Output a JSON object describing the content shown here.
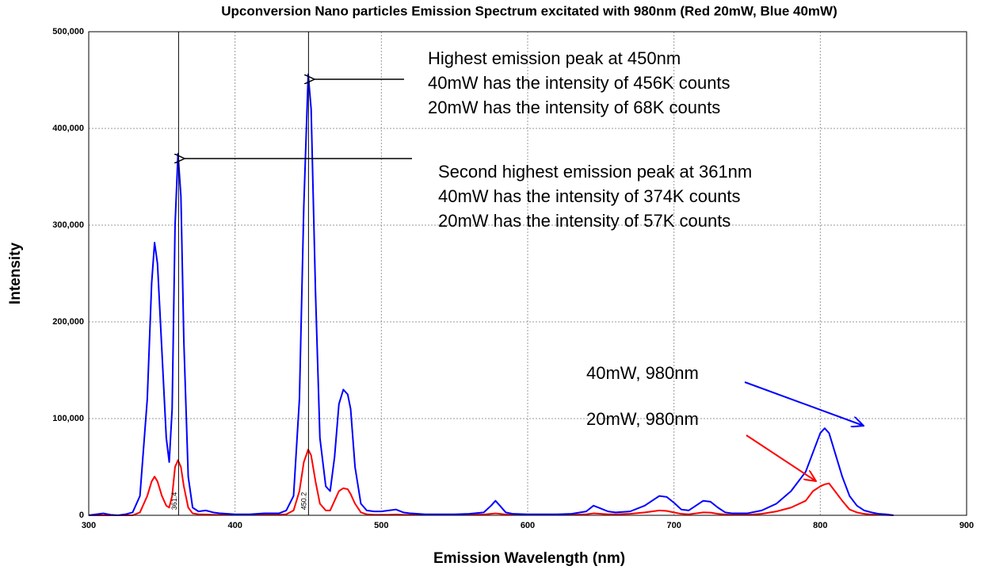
{
  "chart_data": {
    "type": "line",
    "title": "Upconversion Nano particles Emission Spectrum excitated with 980nm (Red 20mW, Blue 40mW)",
    "xlabel": "Emission Wavelength (nm)",
    "ylabel": "Intensity",
    "xlim": [
      300,
      900
    ],
    "ylim": [
      0,
      500000
    ],
    "xticks": [
      300,
      400,
      500,
      600,
      700,
      800,
      900
    ],
    "yticks": [
      {
        "value": 0,
        "label": "0"
      },
      {
        "value": 100000,
        "label": "100,000"
      },
      {
        "value": 200000,
        "label": "200,000"
      },
      {
        "value": 300000,
        "label": "300,000"
      },
      {
        "value": 400000,
        "label": "400,000"
      },
      {
        "value": 500000,
        "label": "500,000"
      }
    ],
    "grid": true,
    "markers": [
      {
        "value": 361.4,
        "label": "361.4"
      },
      {
        "value": 450.2,
        "label": "450.2"
      }
    ],
    "annotations": [
      [
        "Highest emission peak at 450nm",
        "40mW has the intensity of 456K counts",
        "20mW has the intensity of 68K counts"
      ],
      [
        "Second highest emission peak at 361nm",
        "40mW has the intensity of 374K counts",
        "20mW has the intensity of 57K counts"
      ]
    ],
    "x": [
      300,
      305,
      310,
      315,
      320,
      325,
      330,
      335,
      340,
      343,
      345,
      347,
      350,
      353,
      355,
      357,
      359,
      361,
      363,
      365,
      368,
      371,
      375,
      380,
      385,
      390,
      400,
      410,
      420,
      430,
      435,
      440,
      444,
      447,
      450,
      452,
      455,
      458,
      462,
      465,
      468,
      471,
      474,
      477,
      479,
      482,
      486,
      490,
      495,
      500,
      505,
      510,
      515,
      520,
      530,
      540,
      550,
      560,
      570,
      575,
      578,
      581,
      585,
      590,
      600,
      610,
      620,
      630,
      640,
      645,
      650,
      655,
      660,
      670,
      680,
      690,
      695,
      700,
      705,
      710,
      715,
      720,
      725,
      730,
      735,
      740,
      750,
      760,
      770,
      780,
      790,
      795,
      800,
      803,
      806,
      810,
      815,
      820,
      825,
      830,
      835,
      840,
      845,
      850
    ],
    "series": [
      {
        "name": "40mW, 980nm",
        "color": "#0000ff",
        "values": [
          0,
          1000,
          2000,
          500,
          0,
          1000,
          3000,
          20000,
          120000,
          240000,
          282000,
          260000,
          170000,
          80000,
          55000,
          110000,
          300000,
          374000,
          330000,
          180000,
          40000,
          8000,
          4000,
          5000,
          3000,
          2000,
          1000,
          1000,
          2000,
          2000,
          5000,
          20000,
          120000,
          320000,
          456000,
          420000,
          230000,
          80000,
          30000,
          25000,
          60000,
          115000,
          130000,
          125000,
          110000,
          50000,
          12000,
          5000,
          4000,
          4000,
          5000,
          6000,
          3000,
          2000,
          1000,
          1000,
          1000,
          1500,
          3000,
          10000,
          15000,
          10000,
          3000,
          1500,
          1000,
          1000,
          1000,
          1500,
          4000,
          10000,
          7000,
          4000,
          3000,
          4000,
          10000,
          20000,
          19000,
          13000,
          6000,
          5000,
          10000,
          15000,
          14000,
          8000,
          3000,
          2000,
          2000,
          5000,
          12000,
          25000,
          45000,
          65000,
          85000,
          90000,
          85000,
          65000,
          40000,
          20000,
          10000,
          5000,
          3000,
          1500,
          1000,
          0
        ]
      },
      {
        "name": "20mW, 980nm",
        "color": "#ff0000",
        "values": [
          0,
          0,
          0,
          0,
          0,
          0,
          0,
          3000,
          20000,
          35000,
          40000,
          35000,
          20000,
          10000,
          8000,
          20000,
          50000,
          57000,
          50000,
          30000,
          8000,
          2000,
          1000,
          800,
          500,
          500,
          500,
          500,
          500,
          500,
          1000,
          5000,
          25000,
          55000,
          68000,
          62000,
          35000,
          12000,
          5000,
          5000,
          15000,
          25000,
          28000,
          27000,
          22000,
          12000,
          3000,
          1000,
          500,
          500,
          500,
          800,
          500,
          500,
          500,
          500,
          500,
          500,
          800,
          1500,
          2000,
          1500,
          800,
          500,
          500,
          500,
          500,
          500,
          1000,
          2000,
          1500,
          1000,
          1000,
          1500,
          3000,
          5000,
          4500,
          3000,
          1500,
          1000,
          2000,
          3000,
          2800,
          1500,
          800,
          500,
          500,
          1500,
          4000,
          8000,
          15000,
          25000,
          30000,
          32000,
          33000,
          25000,
          15000,
          6000,
          3000,
          1500,
          800,
          500,
          300,
          0
        ]
      }
    ]
  }
}
